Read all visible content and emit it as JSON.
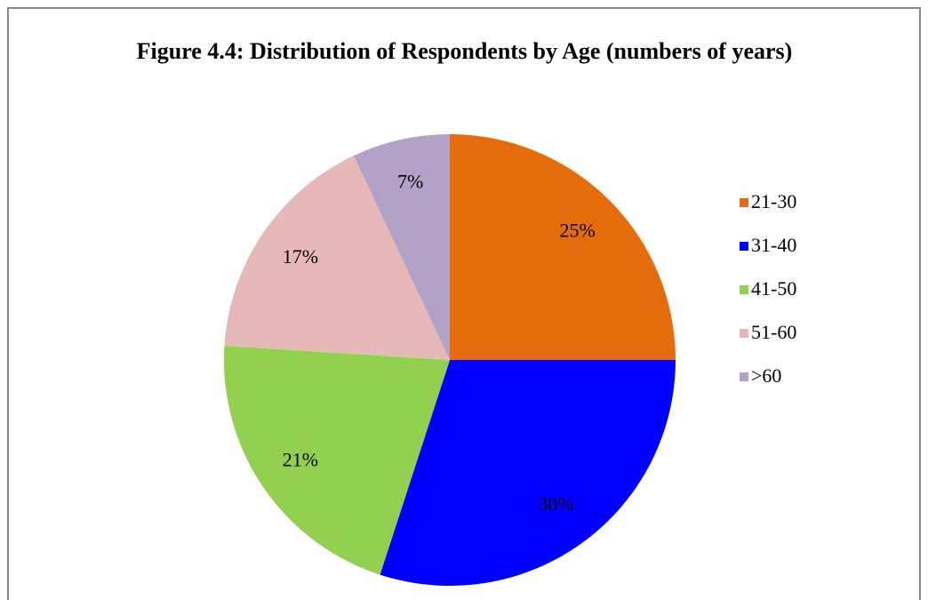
{
  "chart_data": {
    "type": "pie",
    "title": "Figure 4.4: Distribution of Respondents by Age (numbers of years)",
    "categories": [
      "21-30",
      "31-40",
      "41-50",
      "51-60",
      ">60"
    ],
    "values": [
      25,
      30,
      21,
      17,
      7
    ],
    "value_labels": [
      "25%",
      "30%",
      "21%",
      "17%",
      "7%"
    ],
    "colors": [
      "#e46c0a",
      "#0000ff",
      "#92d050",
      "#e6b9b8",
      "#b3a2c7"
    ],
    "legend": "right"
  }
}
